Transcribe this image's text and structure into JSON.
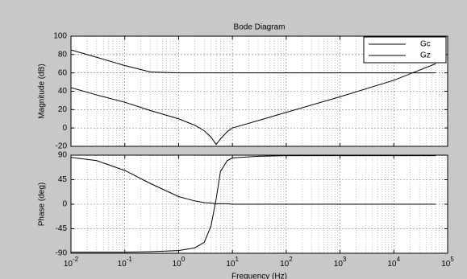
{
  "chart_data": [
    {
      "type": "line",
      "title": "Bode Diagram",
      "ylabel": "Magnitude (dB)",
      "x": [
        0.01,
        0.03,
        0.1,
        0.3,
        1,
        2,
        3,
        4,
        5,
        6,
        8,
        10,
        30,
        100,
        1000,
        10000,
        60000
      ],
      "series": [
        {
          "name": "Gc",
          "color": "#000000",
          "values": [
            85,
            77,
            68,
            61,
            60,
            60,
            60,
            60,
            60,
            60,
            60,
            60,
            60,
            60,
            60,
            60,
            60
          ]
        },
        {
          "name": "Gz",
          "color": "#000000",
          "values": [
            44,
            36,
            28,
            19,
            10,
            3,
            -3,
            -10,
            -18,
            -12,
            -4,
            0,
            8,
            17,
            34,
            52,
            70
          ]
        }
      ],
      "log_x": true,
      "xlim": [
        0.01,
        100000
      ],
      "xticks": [
        0.01,
        0.1,
        1,
        10,
        100,
        1000,
        10000,
        100000
      ],
      "ylim": [
        -20,
        100
      ],
      "yticks": [
        -20,
        0,
        20,
        40,
        60,
        80,
        100
      ],
      "grid": true,
      "minor_grid": true,
      "legend": "upper right"
    },
    {
      "type": "line",
      "ylabel": "Phase (deg)",
      "xlabel": "Frequency  (Hz)",
      "x": [
        0.01,
        0.03,
        0.1,
        0.3,
        1,
        2,
        3,
        4,
        5,
        6,
        8,
        10,
        30,
        100,
        1000,
        10000,
        60000
      ],
      "series": [
        {
          "name": "Gc",
          "color": "#000000",
          "values": [
            86,
            80,
            62,
            38,
            14,
            6,
            3,
            2,
            1,
            1,
            1,
            0,
            0,
            0,
            0,
            0,
            0
          ]
        },
        {
          "name": "Gz",
          "color": "#000000",
          "values": [
            -88,
            -88,
            -88,
            -87,
            -85,
            -80,
            -70,
            -40,
            10,
            60,
            80,
            85,
            88,
            89,
            89,
            89,
            89
          ]
        }
      ],
      "log_x": true,
      "xlim": [
        0.01,
        100000
      ],
      "xticks": [
        {
          "value": 0.01,
          "label": "10-2"
        },
        {
          "value": 0.1,
          "label": "10-1"
        },
        {
          "value": 1,
          "label": "100"
        },
        {
          "value": 10,
          "label": "101"
        },
        {
          "value": 100,
          "label": "102"
        },
        {
          "value": 1000,
          "label": "103"
        },
        {
          "value": 10000,
          "label": "104"
        },
        {
          "value": 100000,
          "label": "105"
        }
      ],
      "ylim": [
        -90,
        90
      ],
      "yticks": [
        -90,
        -45,
        0,
        45,
        90
      ],
      "grid": true,
      "minor_grid": true
    }
  ]
}
